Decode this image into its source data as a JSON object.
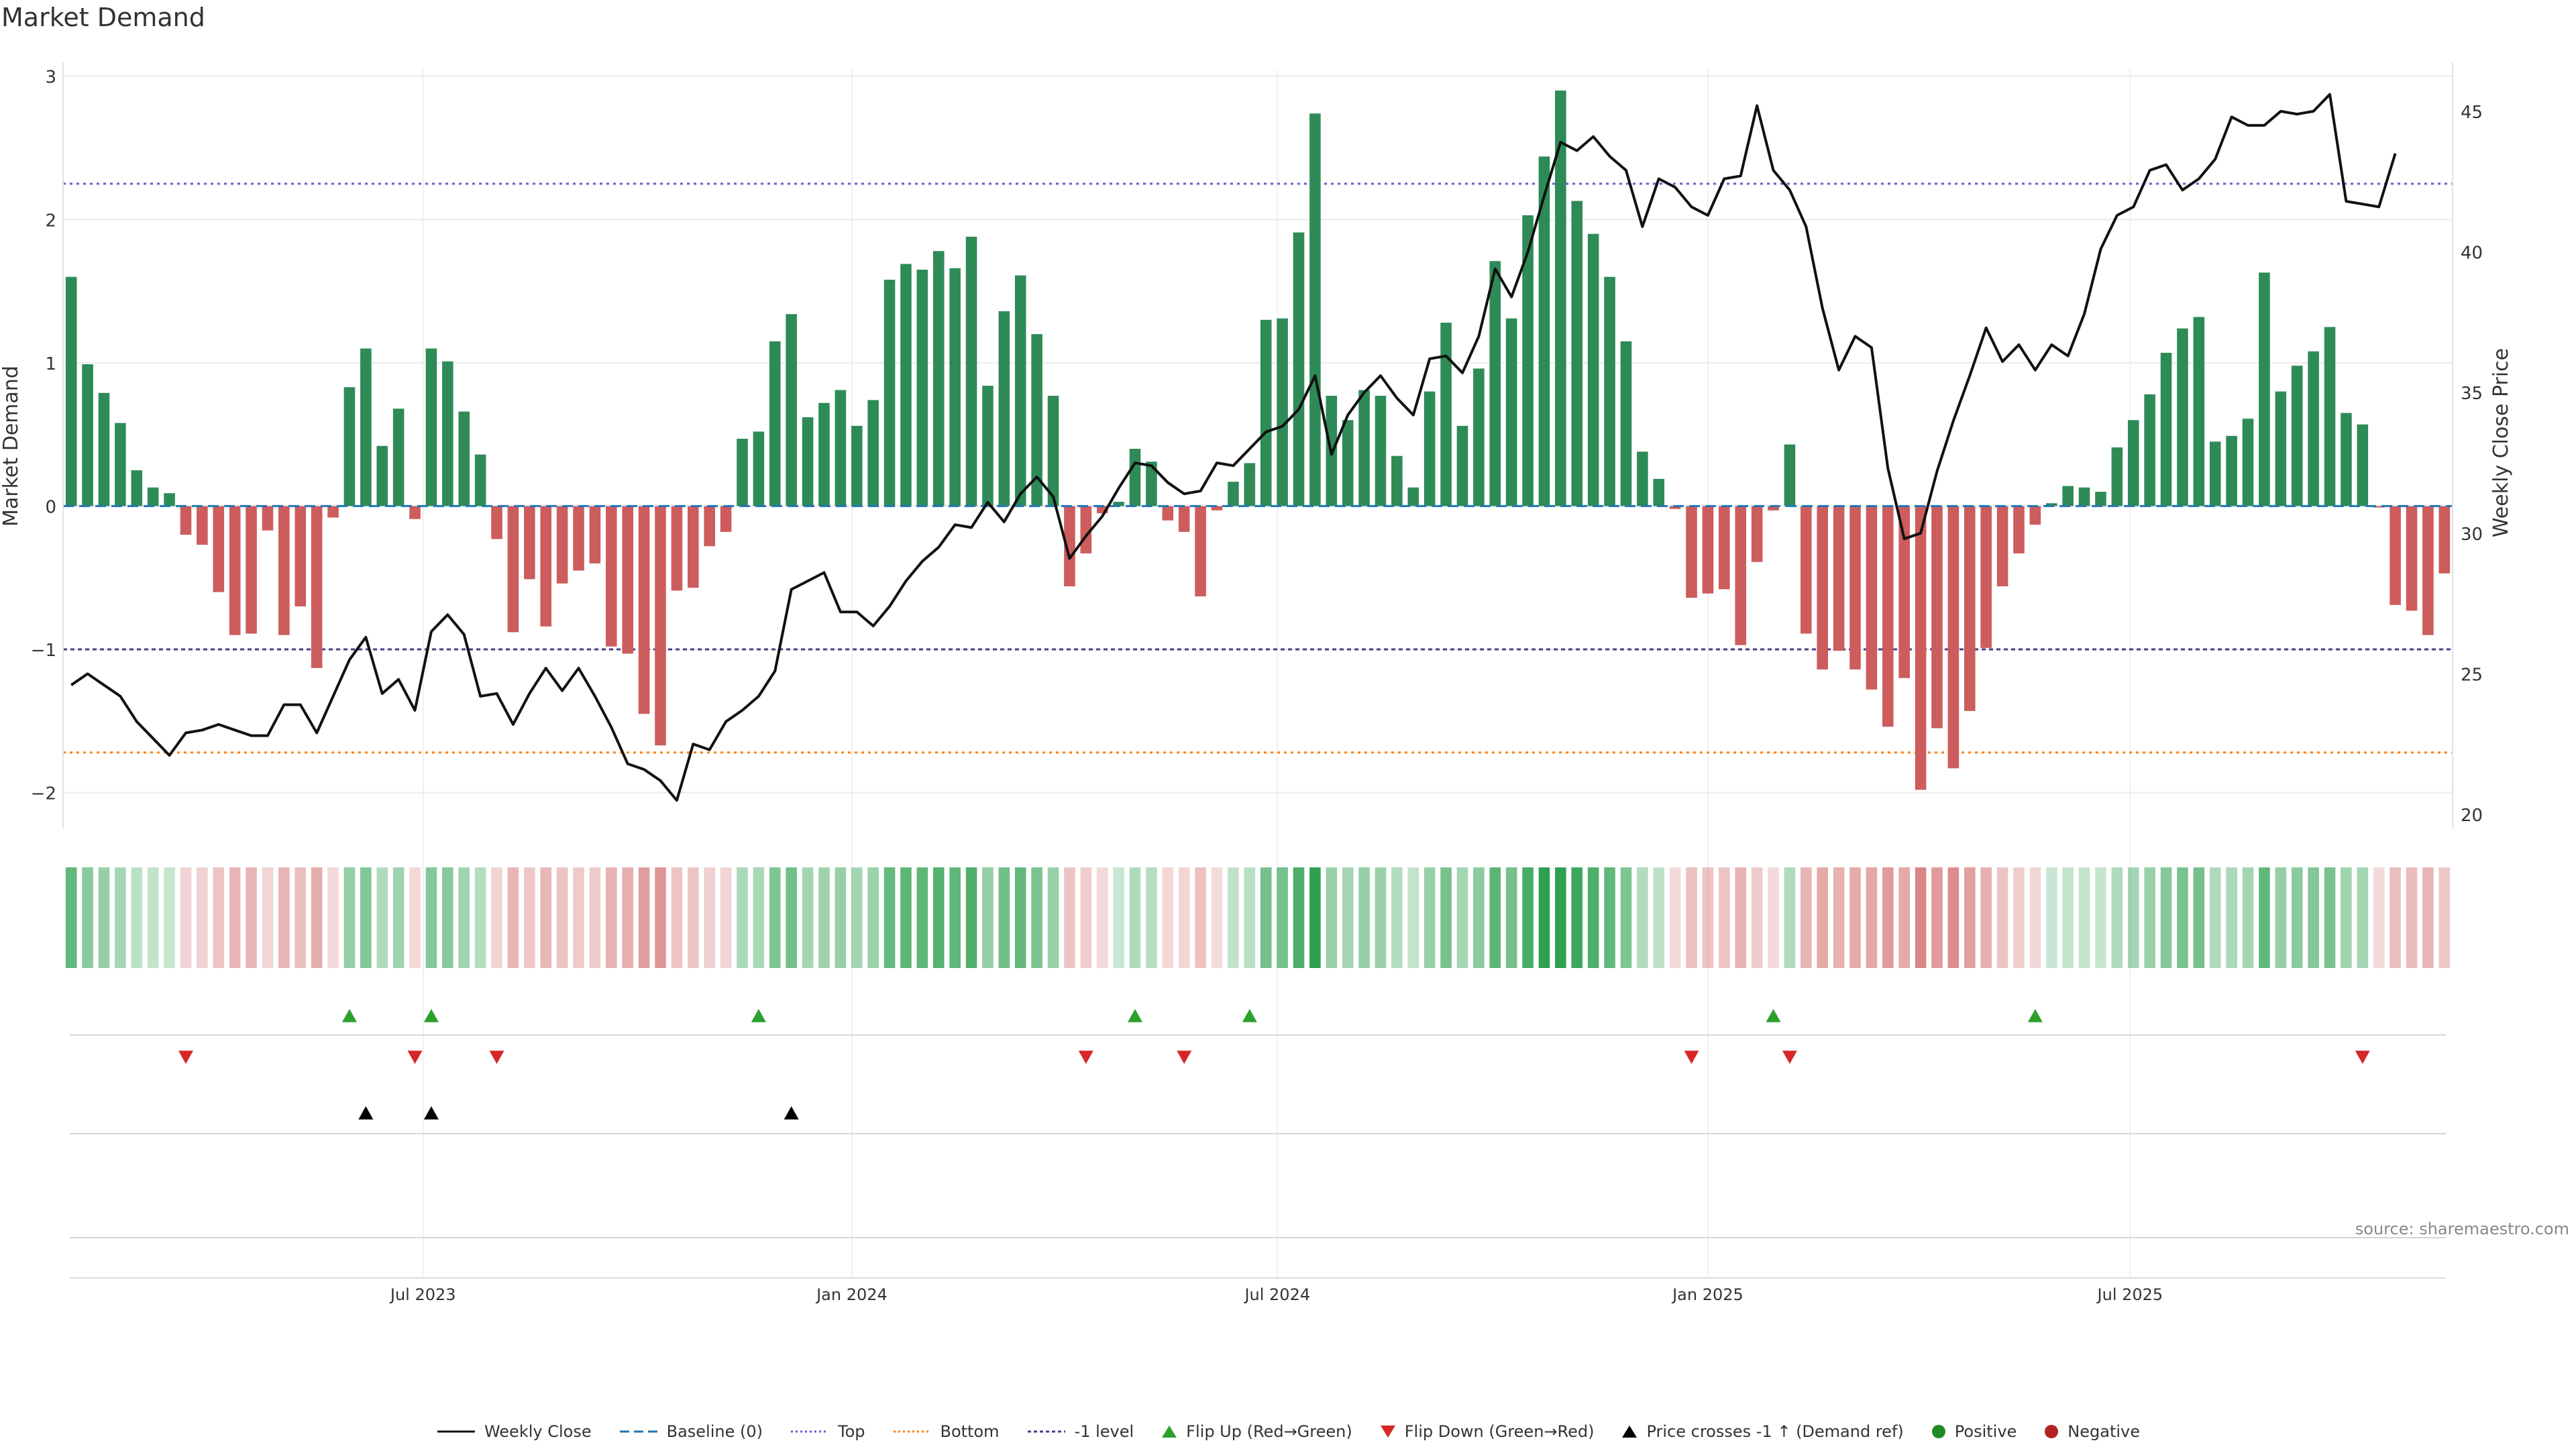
{
  "chart_data": {
    "type": "bar",
    "title": "Market Demand",
    "ylabel": "Market Demand",
    "y2label": "Weekly Close Price",
    "source": "source: sharemaestro.com",
    "ylim": [
      -2.25,
      3.05
    ],
    "y2lim": [
      19.5,
      46.5
    ],
    "yticks": [
      {
        "v": -2,
        "label": "−2"
      },
      {
        "v": -1,
        "label": "−1"
      },
      {
        "v": 0,
        "label": "0"
      },
      {
        "v": 1,
        "label": "1"
      },
      {
        "v": 2,
        "label": "2"
      },
      {
        "v": 3,
        "label": "3"
      }
    ],
    "y2ticks": [
      {
        "v": 20,
        "label": "20"
      },
      {
        "v": 25,
        "label": "25"
      },
      {
        "v": 30,
        "label": "30"
      },
      {
        "v": 35,
        "label": "35"
      },
      {
        "v": 40,
        "label": "40"
      },
      {
        "v": 45,
        "label": "45"
      }
    ],
    "xticks": [
      {
        "i": 21.5,
        "label": "Jul 2023"
      },
      {
        "i": 47.7,
        "label": "Jan 2024"
      },
      {
        "i": 73.7,
        "label": "Jul 2024"
      },
      {
        "i": 100,
        "label": "Jan 2025"
      },
      {
        "i": 125.8,
        "label": "Jul 2025"
      }
    ],
    "reference_lines": {
      "top": 2.25,
      "bottom": -1.72,
      "minus_one": -1.0,
      "baseline": 0
    },
    "demand": [
      1.6,
      0.99,
      0.79,
      0.58,
      0.25,
      0.13,
      0.09,
      -0.2,
      -0.27,
      -0.6,
      -0.9,
      -0.89,
      -0.17,
      -0.9,
      -0.7,
      -1.13,
      -0.08,
      0.83,
      1.1,
      0.42,
      0.68,
      -0.09,
      1.1,
      1.01,
      0.66,
      0.36,
      -0.23,
      -0.88,
      -0.51,
      -0.84,
      -0.54,
      -0.45,
      -0.4,
      -0.98,
      -1.03,
      -1.45,
      -1.67,
      -0.59,
      -0.57,
      -0.28,
      -0.18,
      0.47,
      0.52,
      1.15,
      1.34,
      0.62,
      0.72,
      0.81,
      0.56,
      0.74,
      1.58,
      1.69,
      1.65,
      1.78,
      1.66,
      1.88,
      0.84,
      1.36,
      1.61,
      1.2,
      0.77,
      -0.56,
      -0.33,
      -0.05,
      0.03,
      0.4,
      0.31,
      -0.1,
      -0.18,
      -0.63,
      -0.03,
      0.17,
      0.3,
      1.3,
      1.31,
      1.91,
      2.74,
      0.77,
      0.6,
      0.81,
      0.77,
      0.35,
      0.13,
      0.8,
      1.28,
      0.56,
      0.96,
      1.71,
      1.31,
      2.03,
      2.44,
      2.9,
      2.13,
      1.9,
      1.6,
      1.15,
      0.38,
      0.19,
      -0.02,
      -0.64,
      -0.61,
      -0.58,
      -0.97,
      -0.39,
      -0.03,
      0.43,
      -0.89,
      -1.14,
      -1.01,
      -1.14,
      -1.28,
      -1.54,
      -1.2,
      -1.98,
      -1.55,
      -1.83,
      -1.43,
      -0.99,
      -0.56,
      -0.33,
      -0.13,
      0.02,
      0.14,
      0.13,
      0.1,
      0.41,
      0.6,
      0.78,
      1.07,
      1.24,
      1.32,
      0.45,
      0.49,
      0.61,
      1.63,
      0.8,
      0.98,
      1.08,
      1.25,
      0.65,
      0.57,
      -0.01,
      -0.69,
      -0.73,
      -0.9,
      -0.47
    ],
    "close": [
      24.6,
      25.0,
      24.6,
      24.2,
      23.3,
      22.7,
      22.1,
      22.9,
      23.0,
      23.2,
      23.0,
      22.8,
      22.8,
      23.9,
      23.9,
      22.9,
      24.2,
      25.5,
      26.3,
      24.3,
      24.8,
      23.7,
      26.5,
      27.1,
      26.4,
      24.2,
      24.3,
      23.2,
      24.3,
      25.2,
      24.4,
      25.2,
      24.2,
      23.1,
      21.8,
      21.6,
      21.2,
      20.5,
      22.5,
      22.3,
      23.3,
      23.7,
      24.2,
      25.1,
      28.0,
      28.3,
      28.6,
      27.2,
      27.2,
      26.7,
      27.4,
      28.3,
      29.0,
      29.5,
      30.3,
      30.2,
      31.1,
      30.4,
      31.4,
      32.0,
      31.3,
      29.1,
      29.9,
      30.6,
      31.6,
      32.5,
      32.4,
      31.8,
      31.4,
      31.5,
      32.5,
      32.4,
      33.0,
      33.6,
      33.8,
      34.4,
      35.6,
      32.8,
      34.2,
      35.0,
      35.6,
      34.8,
      34.2,
      36.2,
      36.3,
      35.7,
      37.0,
      39.4,
      38.4,
      40.0,
      42.0,
      43.9,
      43.6,
      44.1,
      43.4,
      42.9,
      40.9,
      42.6,
      42.3,
      41.6,
      41.3,
      42.6,
      42.7,
      45.2,
      42.9,
      42.2,
      40.9,
      38.0,
      35.8,
      37.0,
      36.6,
      32.3,
      29.8,
      30.0,
      32.2,
      34.0,
      35.6,
      37.3,
      36.1,
      36.7,
      35.8,
      36.7,
      36.3,
      37.8,
      40.1,
      41.3,
      41.6,
      42.9,
      43.1,
      42.2,
      42.6,
      43.3,
      44.8,
      44.5,
      44.5,
      45.0,
      44.9,
      45.0,
      45.6,
      41.8,
      41.7,
      41.6,
      43.5
    ],
    "flip_up": [
      17,
      22,
      42,
      65,
      72,
      104,
      120
    ],
    "flip_down": [
      7,
      21,
      26,
      62,
      68,
      99,
      105,
      140
    ],
    "price_cross": [
      18,
      22,
      44
    ],
    "legend": {
      "weekly_close": "Weekly Close",
      "baseline": "Baseline (0)",
      "top": "Top",
      "bottom": "Bottom",
      "minus_one": "-1 level",
      "flip_up": "Flip Up (Red→Green)",
      "flip_down": "Flip Down (Green→Red)",
      "price_cross": "Price crosses -1 ↑ (Demand ref)",
      "positive": "Positive",
      "negative": "Negative"
    }
  },
  "colors": {
    "positive": "#2e8b57",
    "negative": "#cd5c5c",
    "line": "#111111",
    "baseline": "#1f77b4",
    "top": "#6a5acd",
    "bottom": "#ff7f0e",
    "minus_one": "#483d8b",
    "flip_up": "#2ca02c",
    "flip_down": "#d62728",
    "cross": "#000000",
    "pos_dot": "#228b22",
    "neg_dot": "#b22222"
  }
}
